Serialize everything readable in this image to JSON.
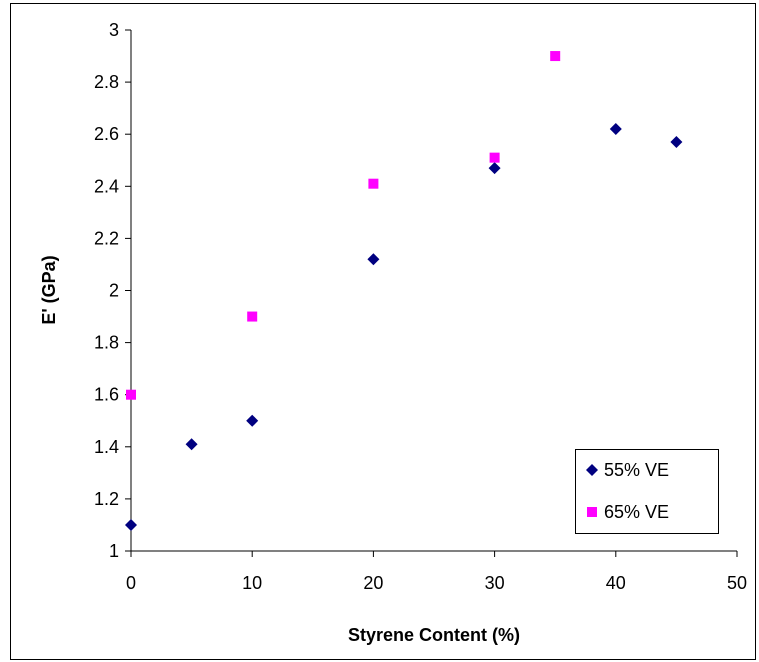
{
  "chart_data": {
    "type": "scatter",
    "xlabel": "Styrene Content (%)",
    "ylabel": "E' (GPa)",
    "xlim": [
      0,
      50
    ],
    "ylim": [
      1,
      3
    ],
    "x_ticks": [
      "0",
      "10",
      "20",
      "30",
      "40",
      "50"
    ],
    "y_ticks": [
      "1",
      "1.2",
      "1.4",
      "1.6",
      "1.8",
      "2",
      "2.2",
      "2.4",
      "2.6",
      "2.8",
      "3"
    ],
    "grid": false,
    "legend_position": "bottom-right",
    "series": [
      {
        "name": "55% VE",
        "marker": "diamond",
        "color": "#000080",
        "x": [
          0,
          5,
          10,
          20,
          30,
          40,
          45
        ],
        "y": [
          1.1,
          1.41,
          1.5,
          2.12,
          2.47,
          2.62,
          2.57
        ]
      },
      {
        "name": "65% VE",
        "marker": "square",
        "color": "#FF00FF",
        "x": [
          0,
          10,
          20,
          30,
          35
        ],
        "y": [
          1.6,
          1.9,
          2.41,
          2.51,
          2.9
        ]
      }
    ]
  }
}
